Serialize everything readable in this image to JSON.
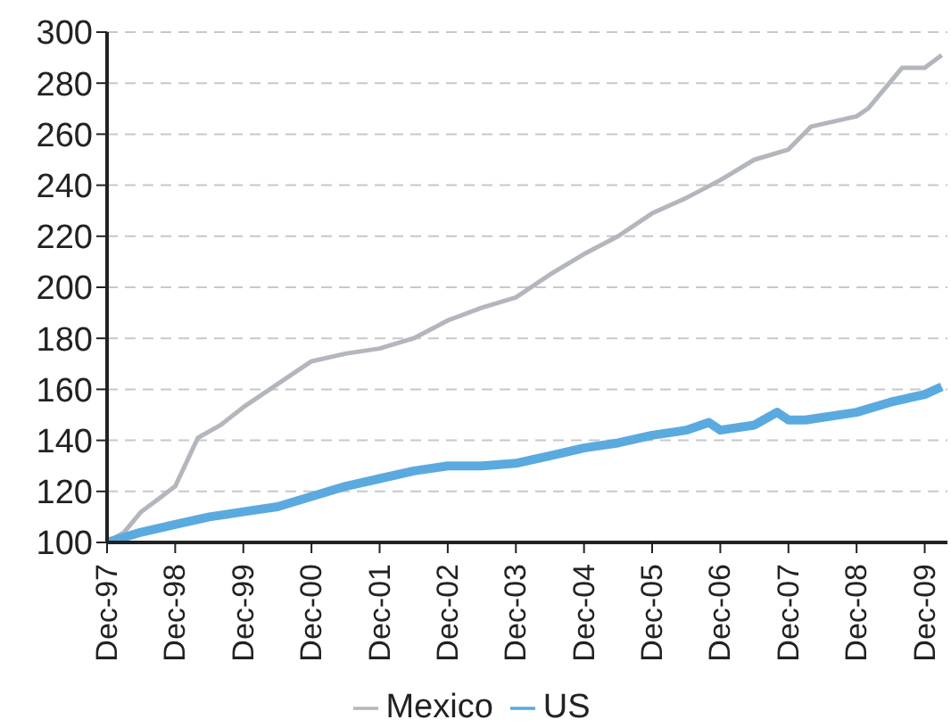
{
  "chart_data": {
    "type": "line",
    "series": [
      {
        "name": "Mexico",
        "color": "#b3b6bd",
        "x": [
          "1997-12",
          "1998-03",
          "1998-06",
          "1998-09",
          "1998-12",
          "1999-04",
          "1999-08",
          "1999-12",
          "2000-06",
          "2000-12",
          "2001-06",
          "2001-12",
          "2002-06",
          "2002-12",
          "2003-06",
          "2003-12",
          "2004-06",
          "2004-12",
          "2005-06",
          "2005-12",
          "2006-06",
          "2006-12",
          "2007-06",
          "2007-12",
          "2008-04",
          "2008-12",
          "2009-02",
          "2009-08",
          "2009-12",
          "2010-03"
        ],
        "values": [
          100,
          104,
          112,
          117,
          122,
          141,
          146,
          153,
          162,
          171,
          174,
          176,
          180,
          187,
          192,
          196,
          205,
          213,
          220,
          229,
          235,
          242,
          250,
          254,
          263,
          267,
          270,
          286,
          286,
          291
        ]
      },
      {
        "name": "US",
        "color": "#5aaadf",
        "x": [
          "1997-12",
          "1998-06",
          "1998-12",
          "1999-06",
          "1999-12",
          "2000-06",
          "2000-12",
          "2001-06",
          "2001-12",
          "2002-06",
          "2002-12",
          "2003-06",
          "2003-12",
          "2004-06",
          "2004-12",
          "2005-06",
          "2005-12",
          "2006-06",
          "2006-10",
          "2006-12",
          "2007-06",
          "2007-10",
          "2007-12",
          "2008-03",
          "2008-12",
          "2009-06",
          "2009-12",
          "2010-03"
        ],
        "values": [
          100,
          104,
          107,
          110,
          112,
          114,
          118,
          122,
          125,
          128,
          130,
          130,
          131,
          134,
          137,
          139,
          142,
          144,
          147,
          144,
          146,
          151,
          148,
          148,
          151,
          155,
          158,
          161
        ]
      }
    ],
    "xlim": [
      "1997-12",
      "2010-04"
    ],
    "xticks": [
      {
        "value": "1997-12",
        "label": "Dec-97"
      },
      {
        "value": "1998-12",
        "label": "Dec-98"
      },
      {
        "value": "1999-12",
        "label": "Dec-99"
      },
      {
        "value": "2000-12",
        "label": "Dec-00"
      },
      {
        "value": "2001-12",
        "label": "Dec-01"
      },
      {
        "value": "2002-12",
        "label": "Dec-02"
      },
      {
        "value": "2003-12",
        "label": "Dec-03"
      },
      {
        "value": "2004-12",
        "label": "Dec-04"
      },
      {
        "value": "2005-12",
        "label": "Dec-05"
      },
      {
        "value": "2006-12",
        "label": "Dec-06"
      },
      {
        "value": "2007-12",
        "label": "Dec-07"
      },
      {
        "value": "2008-12",
        "label": "Dec-08"
      },
      {
        "value": "2009-12",
        "label": "Dec-09"
      }
    ],
    "ylim": [
      100,
      300
    ],
    "yticks": [
      100,
      120,
      140,
      160,
      180,
      200,
      220,
      240,
      260,
      280,
      300
    ],
    "grid": "y",
    "legend": "bottom"
  }
}
